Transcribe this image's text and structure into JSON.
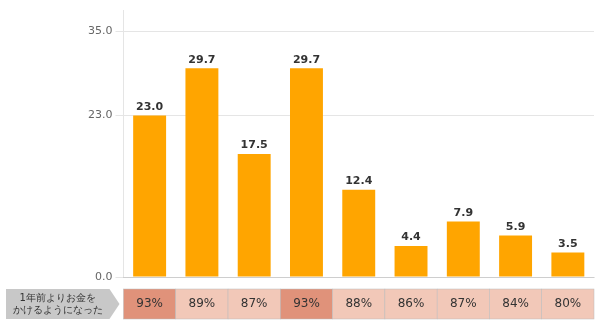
{
  "chart_data": {
    "type": "bar",
    "categories": [
      null,
      null,
      null,
      null,
      null,
      null,
      null,
      null,
      null
    ],
    "values": [
      23.0,
      29.7,
      17.5,
      29.7,
      12.4,
      4.4,
      7.9,
      5.9,
      3.5
    ],
    "value_labels": [
      "23.0",
      "29.7",
      "17.5",
      "29.7",
      "12.4",
      "4.4",
      "7.9",
      "5.9",
      "3.5"
    ],
    "data_labels": true,
    "color": "#FFA500",
    "ylim": [
      0,
      38
    ],
    "yticks": [
      {
        "value": 0,
        "label": "0.0"
      },
      {
        "value": 23,
        "label": "23.0"
      },
      {
        "value": 35,
        "label": "35.0"
      }
    ],
    "grid": true,
    "tick_labels": "y",
    "share_row": {
      "name": "1年前よりお金を\nかけるようになった",
      "values": [
        93,
        89,
        87,
        93,
        88,
        86,
        87,
        84,
        80
      ],
      "value_labels": [
        "93%",
        "89%",
        "87%",
        "93%",
        "88%",
        "86%",
        "87%",
        "84%",
        "80%"
      ],
      "colors": [
        "#e0927a",
        "#f2c8b8",
        "#f2c8b8",
        "#e0927a",
        "#f2c8b8",
        "#f2c8b8",
        "#f2c8b8",
        "#f2c8b8",
        "#f2c8b8"
      ]
    }
  }
}
